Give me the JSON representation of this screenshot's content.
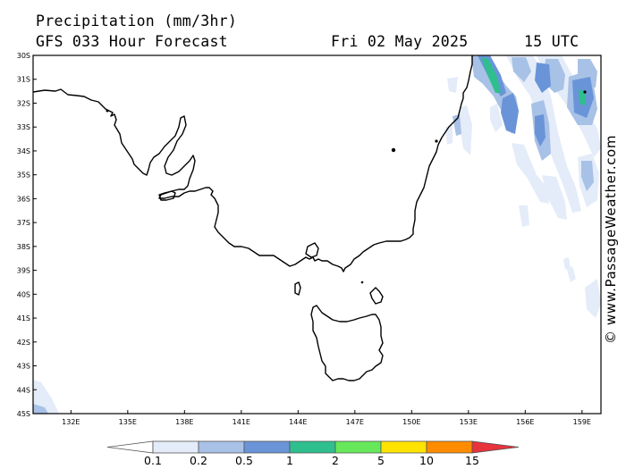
{
  "header": {
    "title": "Precipitation (mm/3hr)",
    "model": "GFS 033 Hour Forecast",
    "date": "Fri 02 May 2025",
    "time": "15 UTC"
  },
  "map": {
    "lat_labels": [
      "30S",
      "31S",
      "32S",
      "33S",
      "34S",
      "35S",
      "36S",
      "37S",
      "38S",
      "39S",
      "40S",
      "41S",
      "42S",
      "43S",
      "44S",
      "45S"
    ],
    "lon_labels": [
      "132E",
      "135E",
      "138E",
      "141E",
      "144E",
      "147E",
      "150E",
      "153E",
      "156E",
      "159E"
    ],
    "lat_range": [
      -45,
      -30
    ],
    "lon_range": [
      130,
      160
    ]
  },
  "watermark": "© www.PassageWeather.com",
  "legend": {
    "labels": [
      "0.1",
      "0.2",
      "0.5",
      "1",
      "2",
      "5",
      "10",
      "15"
    ],
    "colors": [
      "#ffffff",
      "#e3ecf8",
      "#a8c1e6",
      "#6a94d8",
      "#2fbf8f",
      "#66e85a",
      "#ffe200",
      "#ff8c00",
      "#e8323c"
    ]
  }
}
